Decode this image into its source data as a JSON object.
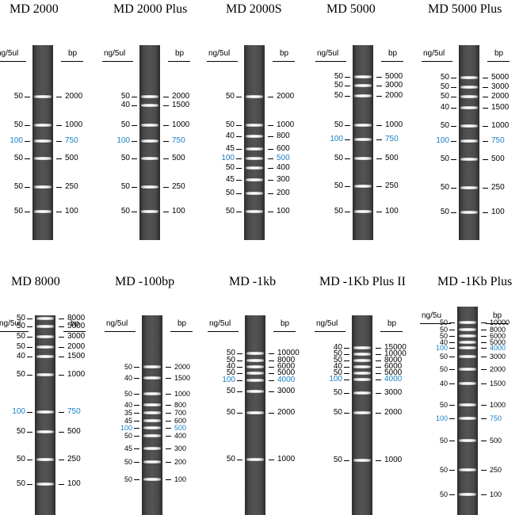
{
  "header": {
    "ng_label": "ng/5ul",
    "ng_label_alt": "ng/5u",
    "bp_label": "bp"
  },
  "colors": {
    "highlight": "#1a7fc4",
    "text": "#000000",
    "gel": "#4a4a4a"
  },
  "ladders": [
    {
      "title": "MD 2000",
      "bands": [
        {
          "ng": "50",
          "bp": "2000"
        },
        {
          "ng": "50",
          "bp": "1000"
        },
        {
          "ng": "100",
          "bp": "750",
          "highlight": true
        },
        {
          "ng": "50",
          "bp": "500"
        },
        {
          "ng": "50",
          "bp": "250"
        },
        {
          "ng": "50",
          "bp": "100"
        }
      ]
    },
    {
      "title": "MD 2000 Plus",
      "bands": [
        {
          "ng": "50",
          "bp": "2000"
        },
        {
          "ng": "40",
          "bp": "1500"
        },
        {
          "ng": "50",
          "bp": "1000"
        },
        {
          "ng": "100",
          "bp": "750",
          "highlight": true
        },
        {
          "ng": "50",
          "bp": "500"
        },
        {
          "ng": "50",
          "bp": "250"
        },
        {
          "ng": "50",
          "bp": "100"
        }
      ]
    },
    {
      "title": "MD 2000S",
      "bands": [
        {
          "ng": "50",
          "bp": "2000"
        },
        {
          "ng": "50",
          "bp": "1000"
        },
        {
          "ng": "40",
          "bp": "800"
        },
        {
          "ng": "45",
          "bp": "600"
        },
        {
          "ng": "100",
          "bp": "500",
          "highlight": true
        },
        {
          "ng": "50",
          "bp": "400"
        },
        {
          "ng": "45",
          "bp": "300"
        },
        {
          "ng": "50",
          "bp": "200"
        },
        {
          "ng": "50",
          "bp": "100"
        }
      ]
    },
    {
      "title": "MD 5000",
      "bands": [
        {
          "ng": "50",
          "bp": "5000"
        },
        {
          "ng": "50",
          "bp": "3000"
        },
        {
          "ng": "50",
          "bp": "2000"
        },
        {
          "ng": "50",
          "bp": "1000"
        },
        {
          "ng": "100",
          "bp": "750",
          "highlight": true
        },
        {
          "ng": "50",
          "bp": "500"
        },
        {
          "ng": "50",
          "bp": "250"
        },
        {
          "ng": "50",
          "bp": "100"
        }
      ]
    },
    {
      "title": "MD 5000 Plus",
      "bands": [
        {
          "ng": "50",
          "bp": "5000"
        },
        {
          "ng": "50",
          "bp": "3000"
        },
        {
          "ng": "50",
          "bp": "2000"
        },
        {
          "ng": "40",
          "bp": "1500"
        },
        {
          "ng": "50",
          "bp": "1000"
        },
        {
          "ng": "100",
          "bp": "750",
          "highlight": true
        },
        {
          "ng": "50",
          "bp": "500"
        },
        {
          "ng": "50",
          "bp": "250"
        },
        {
          "ng": "50",
          "bp": "100"
        }
      ]
    },
    {
      "title": "MD 8000",
      "bands": [
        {
          "ng": "50",
          "bp": "8000"
        },
        {
          "ng": "50",
          "bp": "5000"
        },
        {
          "ng": "50",
          "bp": "3000"
        },
        {
          "ng": "50",
          "bp": "2000"
        },
        {
          "ng": "40",
          "bp": "1500"
        },
        {
          "ng": "50",
          "bp": "1000"
        },
        {
          "ng": "100",
          "bp": "750",
          "highlight": true
        },
        {
          "ng": "50",
          "bp": "500"
        },
        {
          "ng": "50",
          "bp": "250"
        },
        {
          "ng": "50",
          "bp": "100"
        }
      ]
    },
    {
      "title": "MD -100bp",
      "bands": [
        {
          "ng": "50",
          "bp": "2000"
        },
        {
          "ng": "40",
          "bp": "1500"
        },
        {
          "ng": "50",
          "bp": "1000"
        },
        {
          "ng": "40",
          "bp": "800"
        },
        {
          "ng": "35",
          "bp": "700"
        },
        {
          "ng": "45",
          "bp": "600"
        },
        {
          "ng": "100",
          "bp": "500",
          "highlight": true
        },
        {
          "ng": "50",
          "bp": "400"
        },
        {
          "ng": "45",
          "bp": "300"
        },
        {
          "ng": "50",
          "bp": "200"
        },
        {
          "ng": "50",
          "bp": "100"
        }
      ]
    },
    {
      "title": "MD -1kb",
      "bands": [
        {
          "ng": "50",
          "bp": "10000"
        },
        {
          "ng": "50",
          "bp": "8000"
        },
        {
          "ng": "40",
          "bp": "6000"
        },
        {
          "ng": "50",
          "bp": "5000"
        },
        {
          "ng": "100",
          "bp": "4000",
          "highlight": true
        },
        {
          "ng": "50",
          "bp": "3000"
        },
        {
          "ng": "50",
          "bp": "2000"
        },
        {
          "ng": "50",
          "bp": "1000"
        }
      ]
    },
    {
      "title": "MD -1Kb Plus II",
      "bands": [
        {
          "ng": "40",
          "bp": "15000"
        },
        {
          "ng": "50",
          "bp": "10000"
        },
        {
          "ng": "50",
          "bp": "8000"
        },
        {
          "ng": "40",
          "bp": "6000"
        },
        {
          "ng": "50",
          "bp": "5000"
        },
        {
          "ng": "100",
          "bp": "4000",
          "highlight": true
        },
        {
          "ng": "50",
          "bp": "3000"
        },
        {
          "ng": "50",
          "bp": "2000"
        },
        {
          "ng": "50",
          "bp": "1000"
        }
      ]
    },
    {
      "title": "MD -1Kb Plus",
      "bands": [
        {
          "ng": "50",
          "bp": "10000"
        },
        {
          "ng": "50",
          "bp": "8000"
        },
        {
          "ng": "50",
          "bp": "6000"
        },
        {
          "ng": "40",
          "bp": "5000"
        },
        {
          "ng": "100",
          "bp": "4000",
          "highlight": true
        },
        {
          "ng": "50",
          "bp": "3000"
        },
        {
          "ng": "50",
          "bp": "2000"
        },
        {
          "ng": "40",
          "bp": "1500"
        },
        {
          "ng": "50",
          "bp": "1000"
        },
        {
          "ng": "100",
          "bp": "750",
          "highlight": true
        },
        {
          "ng": "50",
          "bp": "500"
        },
        {
          "ng": "50",
          "bp": "250"
        },
        {
          "ng": "50",
          "bp": "100"
        }
      ]
    }
  ]
}
